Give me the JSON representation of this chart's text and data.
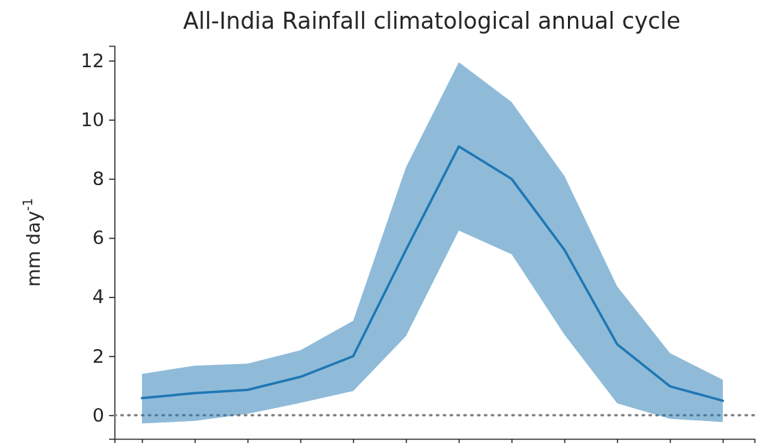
{
  "chart_data": {
    "type": "line",
    "title": "All-India Rainfall climatological annual cycle",
    "ylabel": "mm day$^{-1}$",
    "categories": [
      null,
      null,
      null,
      null,
      null,
      null,
      null,
      null,
      null,
      null,
      null,
      null
    ],
    "series": [
      {
        "color": "#1f77b4",
        "values": [
          0.58,
          0.75,
          0.86,
          1.3,
          2.0,
          5.6,
          9.1,
          8.0,
          5.6,
          2.4,
          0.98,
          0.49
        ],
        "lower": [
          -0.28,
          -0.19,
          0.05,
          0.42,
          0.82,
          2.68,
          6.25,
          5.45,
          2.73,
          0.4,
          -0.12,
          -0.23
        ],
        "upper": [
          1.4,
          1.68,
          1.75,
          2.2,
          3.2,
          8.4,
          11.95,
          10.6,
          8.1,
          4.36,
          2.1,
          1.2
        ]
      }
    ],
    "ylim": [
      -0.8,
      12.5
    ],
    "yticks": [
      0,
      2,
      4,
      6,
      8,
      10,
      12
    ],
    "tick_labels": "y",
    "ref_lines": [
      {
        "axis": "y",
        "value": 0,
        "color": "#808080",
        "line_style": "dotted"
      }
    ]
  }
}
